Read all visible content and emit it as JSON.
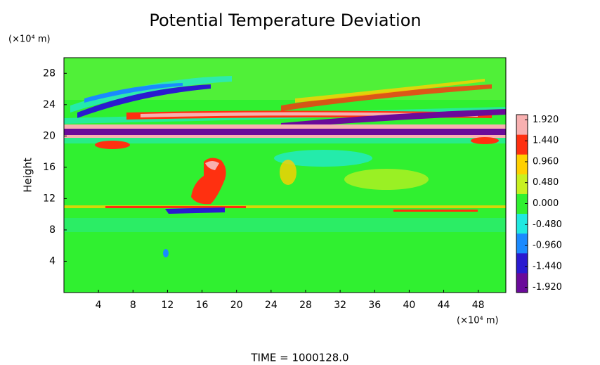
{
  "chart_data": {
    "type": "heatmap",
    "title": "Potential Temperature Deviation",
    "y_label": "Height",
    "y_unit": "(×10⁴ m)",
    "x_unit": "(×10⁴ m)",
    "footer": "TIME = 1000128.0",
    "xlim": [
      0,
      51.2
    ],
    "xticks": [
      4,
      8,
      12,
      16,
      20,
      24,
      28,
      32,
      36,
      40,
      44,
      48
    ],
    "ylim": [
      0,
      30
    ],
    "yticks": [
      4,
      8,
      12,
      16,
      20,
      24,
      28
    ],
    "colorbar": {
      "lim": [
        -2.04,
        2.04
      ],
      "colors": [
        "#6a0a9a",
        "#2a1ad0",
        "#1a8aff",
        "#20e8e0",
        "#30f030",
        "#c8f020",
        "#ffd000",
        "#ff3010",
        "#f8b0b0"
      ],
      "ticks": [
        {
          "value": 1.92,
          "label": "1.920"
        },
        {
          "value": 1.44,
          "label": "1.440"
        },
        {
          "value": 0.96,
          "label": "0.960"
        },
        {
          "value": 0.48,
          "label": "0.480"
        },
        {
          "value": 0,
          "label": "0.000"
        },
        {
          "value": -0.48,
          "label": "-0.480"
        },
        {
          "value": -0.96,
          "label": "-0.960"
        },
        {
          "value": -1.44,
          "label": "-1.440"
        },
        {
          "value": -1.92,
          "label": "-1.920"
        }
      ]
    }
  }
}
